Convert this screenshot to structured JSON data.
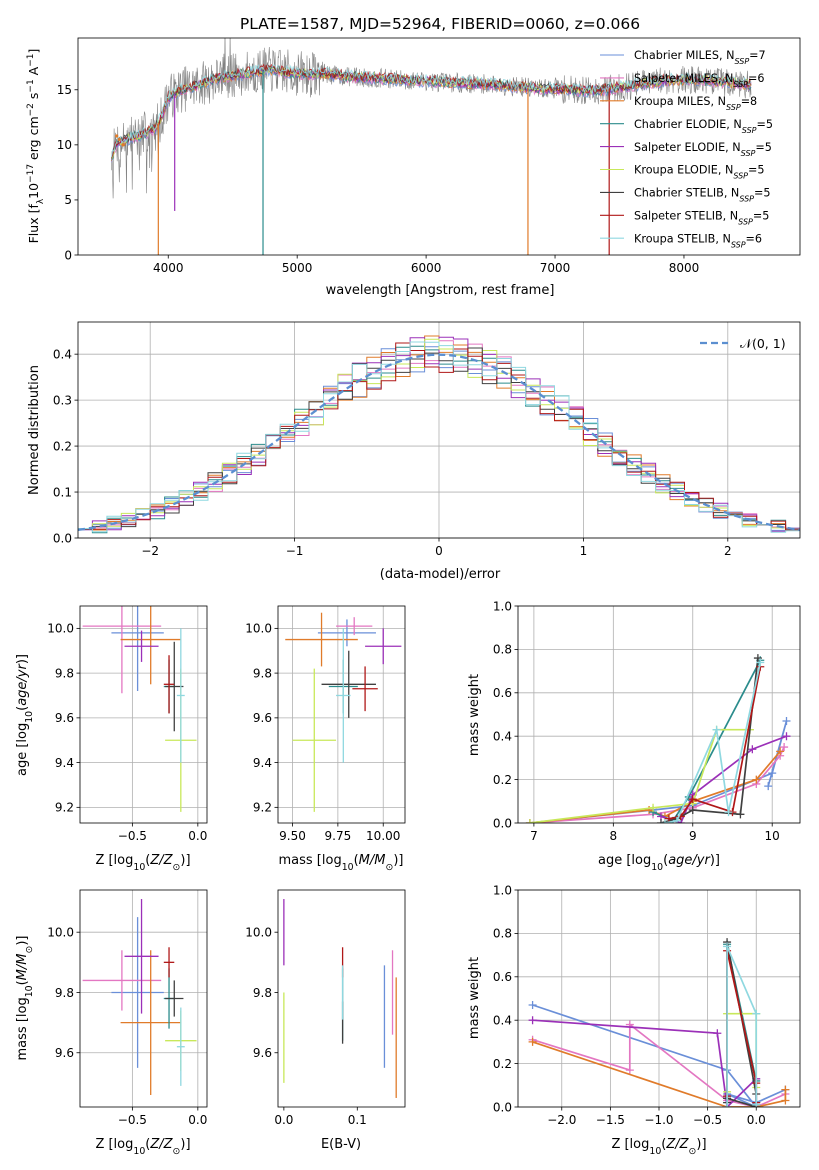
{
  "figure": {
    "title": "PLATE=1587, MJD=52964, FIBERID=0060, z=0.066"
  },
  "colors": {
    "chabrier_miles": "#6a8fd8",
    "salpeter_miles": "#e377c2",
    "kroupa_miles": "#e07b2a",
    "chabrier_elodie": "#2b8c8c",
    "salpeter_elodie": "#9b30b8",
    "kroupa_elodie": "#c8e85a",
    "chabrier_stelib": "#404040",
    "salpeter_stelib": "#b01818",
    "kroupa_stelib": "#8fd8e0",
    "data": "#808080",
    "normal": "#5b8fd0",
    "grid": "#b0b0b0"
  },
  "chart_data": [
    {
      "id": "spectrum",
      "type": "line",
      "xlabel": "wavelength [Angstrom, rest frame]",
      "ylabel": "Flux [f_λ 10^-17 erg cm^-2 s^-1 A^-1]",
      "xlim": [
        3300,
        8900
      ],
      "ylim": [
        0,
        19.7
      ],
      "xticks": [
        "4000",
        "5000",
        "6000",
        "7000",
        "8000"
      ],
      "yticks": [
        "0",
        "5",
        "10",
        "15"
      ],
      "grid": false,
      "legend_position": "top-right",
      "legend": [
        {
          "main": "Chabrier MILES, N",
          "sub": "SSP",
          "tail": "=7",
          "color_key": "chabrier_miles"
        },
        {
          "main": "Salpeter MILES, N",
          "sub": "SSP",
          "tail": "=6",
          "color_key": "salpeter_miles"
        },
        {
          "main": "Kroupa MILES, N",
          "sub": "SSP",
          "tail": "=8",
          "color_key": "kroupa_miles"
        },
        {
          "main": "Chabrier ELODIE, N",
          "sub": "SSP",
          "tail": "=5",
          "color_key": "chabrier_elodie"
        },
        {
          "main": "Salpeter ELODIE, N",
          "sub": "SSP",
          "tail": "=5",
          "color_key": "salpeter_elodie"
        },
        {
          "main": "Kroupa ELODIE, N",
          "sub": "SSP",
          "tail": "=5",
          "color_key": "kroupa_elodie"
        },
        {
          "main": "Chabrier STELIB, N",
          "sub": "SSP",
          "tail": "=5",
          "color_key": "chabrier_stelib"
        },
        {
          "main": "Salpeter STELIB, N",
          "sub": "SSP",
          "tail": "=5",
          "color_key": "salpeter_stelib"
        },
        {
          "main": "Kroupa STELIB, N",
          "sub": "SSP",
          "tail": "=6",
          "color_key": "kroupa_stelib"
        }
      ],
      "continuum": [
        [
          3560,
          8.8
        ],
        [
          3600,
          10.2
        ],
        [
          3700,
          10.6
        ],
        [
          3800,
          10.9
        ],
        [
          3900,
          11.5
        ],
        [
          3950,
          12.6
        ],
        [
          4000,
          14.3
        ],
        [
          4100,
          15.0
        ],
        [
          4200,
          15.3
        ],
        [
          4300,
          15.7
        ],
        [
          4400,
          16.1
        ],
        [
          4500,
          16.3
        ],
        [
          4600,
          16.5
        ],
        [
          4700,
          16.7
        ],
        [
          4800,
          16.8
        ],
        [
          4900,
          16.6
        ],
        [
          5000,
          16.5
        ],
        [
          5100,
          16.4
        ],
        [
          5200,
          16.5
        ],
        [
          5300,
          16.3
        ],
        [
          5500,
          16.1
        ],
        [
          5700,
          16.0
        ],
        [
          5900,
          15.8
        ],
        [
          6000,
          15.8
        ],
        [
          6100,
          15.7
        ],
        [
          6300,
          15.6
        ],
        [
          6500,
          15.5
        ],
        [
          6700,
          15.3
        ],
        [
          6900,
          15.1
        ],
        [
          7100,
          15.0
        ],
        [
          7300,
          14.9
        ],
        [
          7500,
          15.2
        ],
        [
          7700,
          15.6
        ],
        [
          7900,
          15.9
        ],
        [
          8100,
          15.9
        ],
        [
          8300,
          15.7
        ],
        [
          8500,
          15.5
        ]
      ],
      "model_dips": [
        {
          "x": 3923,
          "y": 0
        },
        {
          "x": 4050,
          "y": 4.0
        },
        {
          "x": 4735,
          "y": 0
        },
        {
          "x": 6790,
          "y": 0
        },
        {
          "x": 7420,
          "y": 0
        }
      ]
    },
    {
      "id": "residuals",
      "type": "line",
      "xlabel": "(data-model)/error",
      "ylabel": "Normed distribution",
      "xlim": [
        -2.5,
        2.5
      ],
      "ylim": [
        0,
        0.47
      ],
      "xticks": [
        "−2",
        "−1",
        "0",
        "1",
        "2"
      ],
      "yticks": [
        "0.0",
        "0.1",
        "0.2",
        "0.3",
        "0.4"
      ],
      "grid": true,
      "legend_position": "top-right",
      "legend_label": "𝒩(0, 1)",
      "bin_width": 0.1,
      "normal": {
        "mean": 0,
        "sigma": 1
      },
      "series_colors": [
        "chabrier_miles",
        "salpeter_miles",
        "kroupa_miles",
        "chabrier_elodie",
        "salpeter_elodie",
        "kroupa_elodie",
        "chabrier_stelib",
        "salpeter_stelib",
        "kroupa_stelib"
      ]
    },
    {
      "id": "z-age",
      "type": "scatter",
      "xlabel": "Z [log10(Z/Z⊙)]",
      "ylabel": "age [log10(age/yr)]",
      "xlim": [
        -0.9,
        0.07
      ],
      "ylim": [
        9.13,
        10.1
      ],
      "xticks": [
        "−0.5",
        "0.0"
      ],
      "yticks": [
        "9.2",
        "9.4",
        "9.6",
        "9.8",
        "10.0"
      ],
      "grid": true,
      "points": [
        {
          "x": -0.46,
          "xerr": 0.2,
          "y": 9.98,
          "yerr": 0.26,
          "c": "chabrier_miles"
        },
        {
          "x": -0.58,
          "xerr": 0.3,
          "y": 10.01,
          "yerr": 0.3,
          "c": "salpeter_miles"
        },
        {
          "x": -0.36,
          "xerr": 0.23,
          "y": 9.95,
          "yerr": 0.2,
          "c": "kroupa_miles"
        },
        {
          "x": -0.22,
          "xerr": 0.04,
          "y": 9.74,
          "yerr": 0.12,
          "c": "chabrier_elodie"
        },
        {
          "x": -0.43,
          "xerr": 0.13,
          "y": 9.92,
          "yerr": 0.07,
          "c": "salpeter_elodie"
        },
        {
          "x": -0.13,
          "xerr": 0.12,
          "y": 9.5,
          "yerr": 0.32,
          "c": "kroupa_elodie"
        },
        {
          "x": -0.18,
          "xerr": 0.07,
          "y": 9.74,
          "yerr": 0.2,
          "c": "chabrier_stelib"
        },
        {
          "x": -0.22,
          "xerr": 0.04,
          "y": 9.75,
          "yerr": 0.13,
          "c": "salpeter_stelib"
        },
        {
          "x": -0.13,
          "xerr": 0.03,
          "y": 9.7,
          "yerr": 0.3,
          "c": "kroupa_stelib"
        }
      ]
    },
    {
      "id": "mass-age",
      "type": "scatter",
      "xlabel": "mass [log10(M/M⊙)]",
      "ylabel": "",
      "xlim": [
        9.42,
        10.12
      ],
      "ylim": [
        9.13,
        10.1
      ],
      "xticks": [
        "9.50",
        "9.75",
        "10.00"
      ],
      "yticks": [
        "9.2",
        "9.4",
        "9.6",
        "9.8",
        "10.0"
      ],
      "grid": true,
      "points": [
        {
          "x": 9.8,
          "xerr": 0.16,
          "y": 9.98,
          "yerr": 0.06,
          "c": "chabrier_miles"
        },
        {
          "x": 9.84,
          "xerr": 0.1,
          "y": 10.01,
          "yerr": 0.04,
          "c": "salpeter_miles"
        },
        {
          "x": 9.66,
          "xerr": 0.2,
          "y": 9.95,
          "yerr": 0.12,
          "c": "kroupa_miles"
        },
        {
          "x": 9.78,
          "xerr": 0.08,
          "y": 9.74,
          "yerr": 0.12,
          "c": "chabrier_elodie"
        },
        {
          "x": 10.0,
          "xerr": 0.1,
          "y": 9.92,
          "yerr": 0.08,
          "c": "salpeter_elodie"
        },
        {
          "x": 9.62,
          "xerr": 0.12,
          "y": 9.5,
          "yerr": 0.32,
          "c": "kroupa_elodie"
        },
        {
          "x": 9.81,
          "xerr": 0.15,
          "y": 9.75,
          "yerr": 0.15,
          "c": "chabrier_stelib"
        },
        {
          "x": 9.9,
          "xerr": 0.07,
          "y": 9.73,
          "yerr": 0.1,
          "c": "salpeter_stelib"
        },
        {
          "x": 9.78,
          "xerr": 0.04,
          "y": 9.7,
          "yerr": 0.3,
          "c": "kroupa_stelib"
        }
      ]
    },
    {
      "id": "age-weight",
      "type": "line",
      "xlabel": "age [log10(age/yr)]",
      "ylabel": "mass weight",
      "xlim": [
        6.8,
        10.35
      ],
      "ylim": [
        0,
        1
      ],
      "xticks": [
        "7",
        "8",
        "9",
        "10"
      ],
      "yticks": [
        "0.0",
        "0.2",
        "0.4",
        "0.6",
        "0.8",
        "1.0"
      ],
      "grid": true,
      "series": [
        {
          "c": "chabrier_miles",
          "x": [
            6.95,
            8.5,
            9.0,
            10.0,
            10.18,
            9.95
          ],
          "y": [
            0.0,
            0.06,
            0.08,
            0.23,
            0.47,
            0.17
          ]
        },
        {
          "c": "salpeter_miles",
          "x": [
            6.95,
            8.5,
            9.0,
            9.8,
            10.1,
            10.15
          ],
          "y": [
            0.0,
            0.04,
            0.07,
            0.18,
            0.31,
            0.35
          ]
        },
        {
          "c": "kroupa_miles",
          "x": [
            6.95,
            8.45,
            8.65,
            9.0,
            9.8,
            10.1
          ],
          "y": [
            0.0,
            0.06,
            0.03,
            0.1,
            0.2,
            0.33
          ]
        },
        {
          "c": "chabrier_elodie",
          "x": [
            8.5,
            8.75,
            8.95,
            9.85
          ],
          "y": [
            0.05,
            0.01,
            0.12,
            0.75
          ]
        },
        {
          "c": "salpeter_elodie",
          "x": [
            8.6,
            8.85,
            9.0,
            9.75,
            10.18
          ],
          "y": [
            0.03,
            0.0,
            0.13,
            0.34,
            0.4
          ]
        },
        {
          "c": "kroupa_elodie",
          "x": [
            6.95,
            8.5,
            9.0,
            9.3,
            9.72
          ],
          "y": [
            0.0,
            0.07,
            0.09,
            0.43,
            0.43
          ]
        },
        {
          "c": "chabrier_stelib",
          "x": [
            8.6,
            8.8,
            9.0,
            9.6,
            9.82
          ],
          "y": [
            0.0,
            0.02,
            0.06,
            0.04,
            0.76
          ]
        },
        {
          "c": "salpeter_stelib",
          "x": [
            8.7,
            8.85,
            9.0,
            9.5,
            9.85
          ],
          "y": [
            0.02,
            0.03,
            0.11,
            0.05,
            0.72
          ]
        },
        {
          "c": "kroupa_stelib",
          "x": [
            8.65,
            8.8,
            9.3,
            9.45,
            9.85
          ],
          "y": [
            0.0,
            0.01,
            0.43,
            0.05,
            0.74
          ]
        }
      ]
    },
    {
      "id": "z-mass",
      "type": "scatter",
      "xlabel": "Z [log10(Z/Z⊙)]",
      "ylabel": "mass [log10(M/M⊙)]",
      "xlim": [
        -0.9,
        0.07
      ],
      "ylim": [
        9.42,
        10.14
      ],
      "xticks": [
        "−0.5",
        "0.0"
      ],
      "yticks": [
        "9.6",
        "9.8",
        "10.0"
      ],
      "grid": true,
      "points": [
        {
          "x": -0.46,
          "xerr": 0.2,
          "y": 9.8,
          "yerr": 0.25,
          "c": "chabrier_miles"
        },
        {
          "x": -0.58,
          "xerr": 0.3,
          "y": 9.84,
          "yerr": 0.1,
          "c": "salpeter_miles"
        },
        {
          "x": -0.36,
          "xerr": 0.23,
          "y": 9.7,
          "yerr": 0.24,
          "c": "kroupa_miles"
        },
        {
          "x": -0.22,
          "xerr": 0.04,
          "y": 9.78,
          "yerr": 0.1,
          "c": "chabrier_elodie"
        },
        {
          "x": -0.43,
          "xerr": 0.13,
          "y": 9.92,
          "yerr": 0.19,
          "c": "salpeter_elodie"
        },
        {
          "x": -0.13,
          "xerr": 0.12,
          "y": 9.64,
          "yerr": 0.1,
          "c": "kroupa_elodie"
        },
        {
          "x": -0.18,
          "xerr": 0.07,
          "y": 9.78,
          "yerr": 0.06,
          "c": "chabrier_stelib"
        },
        {
          "x": -0.22,
          "xerr": 0.04,
          "y": 9.9,
          "yerr": 0.05,
          "c": "salpeter_stelib"
        },
        {
          "x": -0.13,
          "xerr": 0.03,
          "y": 9.62,
          "yerr": 0.13,
          "c": "kroupa_stelib"
        }
      ]
    },
    {
      "id": "ebv-mass",
      "type": "scatter",
      "xlabel": "E(B-V)",
      "ylabel": "",
      "xlim": [
        -0.008,
        0.165
      ],
      "ylim": [
        9.42,
        10.14
      ],
      "xticks": [
        "0.0",
        "0.1"
      ],
      "yticks": [
        "9.6",
        "9.8",
        "10.0"
      ],
      "grid": false,
      "points": [
        {
          "x": 0.137,
          "y": 9.72,
          "yerr": 0.17,
          "c": "chabrier_miles"
        },
        {
          "x": 0.148,
          "y": 9.8,
          "yerr": 0.14,
          "c": "salpeter_miles"
        },
        {
          "x": 0.153,
          "y": 9.65,
          "yerr": 0.2,
          "c": "kroupa_miles"
        },
        {
          "x": 0.08,
          "y": 9.76,
          "yerr": 0.12,
          "c": "chabrier_elodie"
        },
        {
          "x": 0.0,
          "y": 10.0,
          "yerr": 0.11,
          "c": "salpeter_elodie"
        },
        {
          "x": 0.0,
          "y": 9.65,
          "yerr": 0.15,
          "c": "kroupa_elodie"
        },
        {
          "x": 0.08,
          "y": 9.7,
          "yerr": 0.07,
          "c": "chabrier_stelib"
        },
        {
          "x": 0.08,
          "y": 9.9,
          "yerr": 0.05,
          "c": "salpeter_stelib"
        },
        {
          "x": 0.08,
          "y": 9.8,
          "yerr": 0.09,
          "c": "kroupa_stelib"
        }
      ]
    },
    {
      "id": "z-weight",
      "type": "line",
      "xlabel": "Z [log10(Z/Z⊙)]",
      "ylabel": "mass weight",
      "xlim": [
        -2.45,
        0.45
      ],
      "ylim": [
        0,
        1
      ],
      "xticks": [
        "−2.0",
        "−1.5",
        "−1.0",
        "−0.5",
        "0.0"
      ],
      "yticks": [
        "0.0",
        "0.2",
        "0.4",
        "0.6",
        "0.8",
        "1.0"
      ],
      "grid": true,
      "series": [
        {
          "c": "chabrier_miles",
          "x": [
            -2.3,
            -0.3,
            0.0,
            -0.3,
            0.0,
            0.3
          ],
          "y": [
            0.47,
            0.17,
            0.0,
            0.06,
            0.02,
            0.08
          ]
        },
        {
          "c": "salpeter_miles",
          "x": [
            -2.3,
            -1.3,
            -1.3,
            -0.3,
            0.0,
            0.3
          ],
          "y": [
            0.31,
            0.17,
            0.38,
            0.03,
            0.0,
            0.06
          ]
        },
        {
          "c": "kroupa_miles",
          "x": [
            -2.3,
            -0.3,
            0.0,
            0.3,
            0.3
          ],
          "y": [
            0.3,
            0.0,
            0.0,
            0.03,
            0.08
          ]
        },
        {
          "c": "chabrier_elodie",
          "x": [
            -0.3,
            -0.3,
            0.0,
            0.0
          ],
          "y": [
            0.05,
            0.75,
            0.12,
            0.01
          ]
        },
        {
          "c": "salpeter_elodie",
          "x": [
            -2.3,
            -0.4,
            -0.3,
            0.0,
            0.0
          ],
          "y": [
            0.4,
            0.34,
            0.0,
            0.13,
            0.0
          ]
        },
        {
          "c": "kroupa_elodie",
          "x": [
            -0.3,
            -0.3,
            0.0,
            0.0
          ],
          "y": [
            0.07,
            0.43,
            0.43,
            0.09
          ]
        },
        {
          "c": "chabrier_stelib",
          "x": [
            -0.3,
            -0.3,
            0.0,
            0.0,
            -0.3
          ],
          "y": [
            0.02,
            0.76,
            0.06,
            0.0,
            0.04
          ]
        },
        {
          "c": "salpeter_stelib",
          "x": [
            -0.3,
            -0.3,
            0.0,
            0.0
          ],
          "y": [
            0.05,
            0.72,
            0.11,
            0.02
          ]
        },
        {
          "c": "kroupa_stelib",
          "x": [
            -0.3,
            -0.3,
            0.0,
            0.0
          ],
          "y": [
            0.0,
            0.74,
            0.43,
            0.01
          ]
        }
      ]
    }
  ]
}
